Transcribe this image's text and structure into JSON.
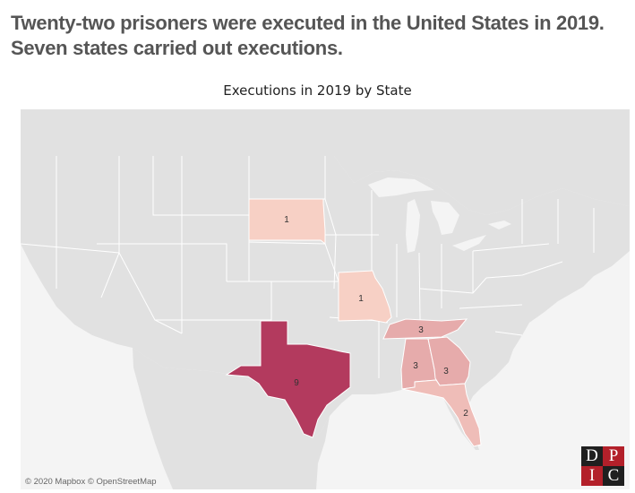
{
  "headline": {
    "line1": "Twenty-two prisoners were executed in the United States in 2019.",
    "line2": "Seven states carried out executions."
  },
  "map": {
    "title": "Executions in 2019 by State",
    "credit": "© 2020 Mapbox © OpenStreetMap",
    "colors": {
      "land": "#e1e1e1",
      "water": "#f4f4f4",
      "border": "#ffffff",
      "scale_low": "#f7d0c5",
      "scale_high": "#b33a5e"
    },
    "states": [
      {
        "name": "South Dakota",
        "executions": 1,
        "label": "1"
      },
      {
        "name": "Missouri",
        "executions": 1,
        "label": "1"
      },
      {
        "name": "Tennessee",
        "executions": 3,
        "label": "3"
      },
      {
        "name": "Alabama",
        "executions": 3,
        "label": "3"
      },
      {
        "name": "Georgia",
        "executions": 3,
        "label": "3"
      },
      {
        "name": "Florida",
        "executions": 2,
        "label": "2"
      },
      {
        "name": "Texas",
        "executions": 9,
        "label": "9"
      }
    ]
  },
  "logo": {
    "letters": [
      "D",
      "P",
      "I",
      "C"
    ]
  }
}
